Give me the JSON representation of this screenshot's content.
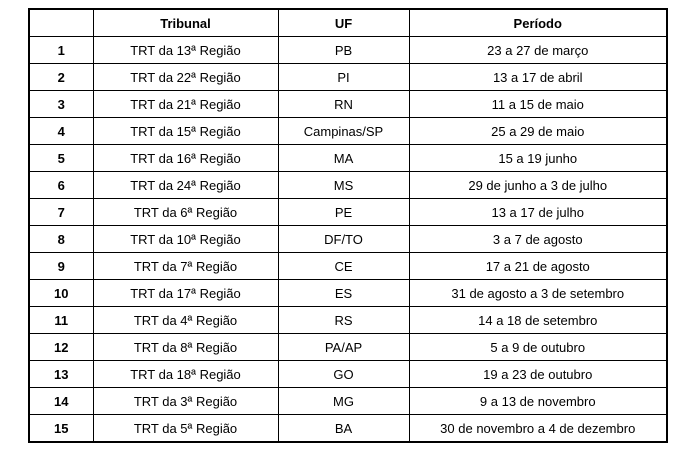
{
  "colors": {
    "border": "#000000",
    "background": "#ffffff",
    "text": "#000000"
  },
  "table": {
    "headers": {
      "index": "",
      "tribunal": "Tribunal",
      "uf": "UF",
      "periodo": "Período"
    },
    "rows": [
      {
        "num": "1",
        "tribunal": "TRT da 13ª Região",
        "uf": "PB",
        "periodo": "23 a 27 de março"
      },
      {
        "num": "2",
        "tribunal": "TRT da 22ª Região",
        "uf": "PI",
        "periodo": "13 a 17 de abril"
      },
      {
        "num": "3",
        "tribunal": "TRT da 21ª Região",
        "uf": "RN",
        "periodo": "11 a 15 de maio"
      },
      {
        "num": "4",
        "tribunal": "TRT da 15ª Região",
        "uf": "Campinas/SP",
        "periodo": "25 a 29 de maio"
      },
      {
        "num": "5",
        "tribunal": "TRT da 16ª Região",
        "uf": "MA",
        "periodo": "15 a 19 junho"
      },
      {
        "num": "6",
        "tribunal": "TRT da 24ª Região",
        "uf": "MS",
        "periodo": "29 de junho a 3 de julho"
      },
      {
        "num": "7",
        "tribunal": "TRT da 6ª Região",
        "uf": "PE",
        "periodo": "13 a 17 de julho"
      },
      {
        "num": "8",
        "tribunal": "TRT da 10ª Região",
        "uf": "DF/TO",
        "periodo": "3 a 7 de agosto"
      },
      {
        "num": "9",
        "tribunal": "TRT da 7ª Região",
        "uf": "CE",
        "periodo": "17 a 21 de agosto"
      },
      {
        "num": "10",
        "tribunal": "TRT da 17ª Região",
        "uf": "ES",
        "periodo": "31 de agosto a 3 de setembro"
      },
      {
        "num": "11",
        "tribunal": "TRT da 4ª Região",
        "uf": "RS",
        "periodo": "14 a 18 de setembro"
      },
      {
        "num": "12",
        "tribunal": "TRT da 8ª Região",
        "uf": "PA/AP",
        "periodo": "5 a 9 de outubro"
      },
      {
        "num": "13",
        "tribunal": "TRT da 18ª Região",
        "uf": "GO",
        "periodo": "19 a 23 de outubro"
      },
      {
        "num": "14",
        "tribunal": "TRT da 3ª Região",
        "uf": "MG",
        "periodo": "9 a 13 de novembro"
      },
      {
        "num": "15",
        "tribunal": "TRT da 5ª Região",
        "uf": "BA",
        "periodo": "30 de novembro a 4 de dezembro"
      }
    ]
  }
}
